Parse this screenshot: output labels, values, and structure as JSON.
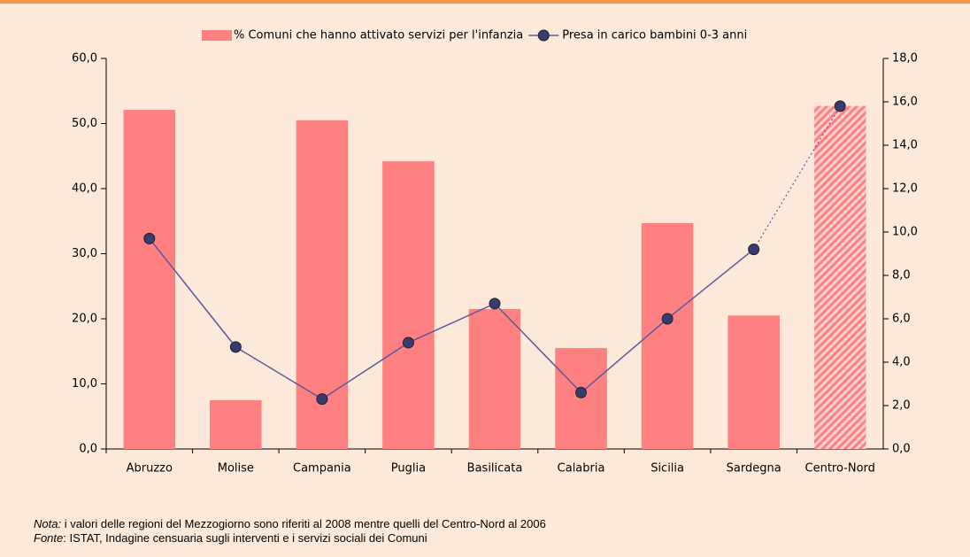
{
  "chart_data": {
    "type": "bar_line",
    "categories": [
      "Abruzzo",
      "Molise",
      "Campania",
      "Puglia",
      "Basilicata",
      "Calabria",
      "Sicilia",
      "Sardegna",
      "Centro-Nord"
    ],
    "series": [
      {
        "name": "% Comuni che hanno attivato servizi per l'infanzia",
        "color": "#ff8080",
        "type": "bar",
        "values": [
          52.1,
          7.5,
          50.5,
          44.2,
          21.5,
          15.5,
          34.7,
          20.5,
          52.7
        ]
      },
      {
        "name": "Presa in carico bambini 0-3 anni",
        "color": "#5a5a9e",
        "type": "line",
        "axis": "y2",
        "values": [
          9.7,
          4.7,
          2.3,
          4.9,
          6.7,
          2.6,
          6.0,
          9.2,
          15.8
        ]
      }
    ],
    "ylim": [
      0,
      60
    ],
    "yticks": [
      {
        "value": 0,
        "label": "0,0"
      },
      {
        "value": 10,
        "label": "10,0"
      },
      {
        "value": 20,
        "label": "20,0"
      },
      {
        "value": 30,
        "label": "30,0"
      },
      {
        "value": 40,
        "label": "40,0"
      },
      {
        "value": 50,
        "label": "50,0"
      },
      {
        "value": 60,
        "label": "60,0"
      }
    ],
    "y2lim": [
      0,
      18
    ],
    "y2ticks": [
      {
        "value": 0,
        "label": "0,0"
      },
      {
        "value": 2,
        "label": "2,0"
      },
      {
        "value": 4,
        "label": "4,0"
      },
      {
        "value": 6,
        "label": "6,0"
      },
      {
        "value": 8,
        "label": "8,0"
      },
      {
        "value": 10,
        "label": "10,0"
      },
      {
        "value": 12,
        "label": "12,0"
      },
      {
        "value": 14,
        "label": "14,0"
      },
      {
        "value": 16,
        "label": "16,0"
      },
      {
        "value": 18,
        "label": "18,0"
      }
    ],
    "notes": [
      {
        "label": "Nota:",
        "text": " i valori delle regioni del Mezzogiorno sono riferiti al 2008 mentre quelli del Centro-Nord al 2006"
      },
      {
        "label": "Fonte",
        "text": ": ISTAT, Indagine censuaria sugli interventi e i servizi sociali dei Comuni"
      }
    ]
  }
}
